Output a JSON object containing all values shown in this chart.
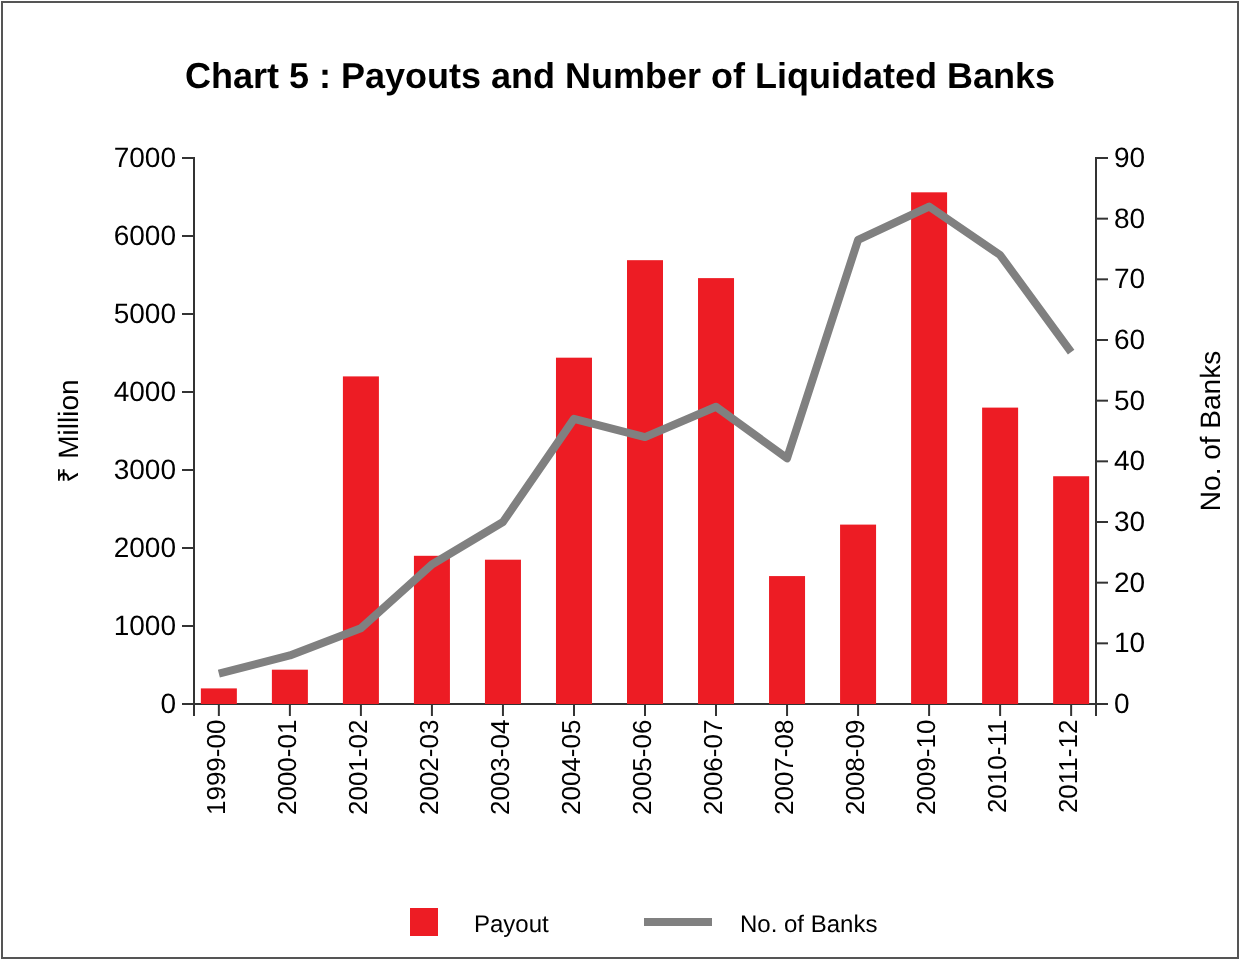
{
  "chart_data": {
    "type": "bar",
    "title": "Chart 5 : Payouts and Number of Liquidated Banks",
    "ylabel": "₹ Million",
    "y2label": "No. of Banks",
    "categories": [
      "1999-00",
      "2000-01",
      "2001-02",
      "2002-03",
      "2003-04",
      "2004-05",
      "2005-06",
      "2006-07",
      "2007-08",
      "2008-09",
      "2009-10",
      "2010-11",
      "2011-12"
    ],
    "series": [
      {
        "name": "Payout",
        "color": "#ed1c24",
        "values": [
          200,
          440,
          4200,
          1900,
          1850,
          4440,
          5690,
          5460,
          1640,
          2300,
          6560,
          3800,
          2920
        ]
      },
      {
        "name": "No. of Banks",
        "type": "line",
        "axis": "y2",
        "color": "#808080",
        "values": [
          5,
          8,
          12.5,
          23,
          30,
          47,
          44,
          49,
          40.5,
          76.5,
          82,
          74,
          58
        ]
      }
    ],
    "ylim": [
      0,
      7000
    ],
    "yticks": [
      0,
      1000,
      2000,
      3000,
      4000,
      5000,
      6000,
      7000
    ],
    "y2lim": [
      0,
      90
    ],
    "y2ticks": [
      0,
      10,
      20,
      30,
      40,
      50,
      60,
      70,
      80,
      90
    ],
    "grid": false,
    "legend": "bottom",
    "line_style": "solid",
    "marker": "none"
  }
}
